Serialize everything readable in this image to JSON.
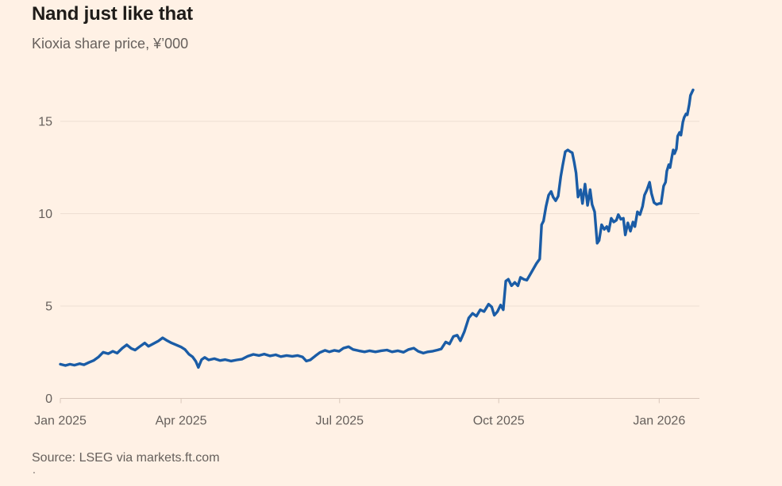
{
  "header": {
    "title": "Nand just like that",
    "subtitle": "Kioxia share price, ¥’000"
  },
  "footer": {
    "source": "Source: LSEG via markets.ft.com",
    "stray_mark": "."
  },
  "chart_data": {
    "type": "line",
    "title": "Nand just like that",
    "subtitle": "Kioxia share price, ¥’000",
    "source": "Source: LSEG via markets.ft.com",
    "ylabel": "Kioxia share price, ¥'000",
    "ylim": [
      0,
      17.2
    ],
    "y_ticks": [
      0,
      5,
      10,
      15
    ],
    "grid": "horizontal",
    "legend": "none",
    "x_unit": "fraction of x-axis (time, daily prices)",
    "x_ticks": [
      {
        "label": "Jan 2025",
        "f": 0.0
      },
      {
        "label": "Apr 2025",
        "f": 0.189
      },
      {
        "label": "Jul 2025",
        "f": 0.437
      },
      {
        "label": "Oct 2025",
        "f": 0.686
      },
      {
        "label": "Jan 2026",
        "f": 0.937
      }
    ],
    "colors": {
      "background": "#fff1e5",
      "line": "#1a5ca6",
      "grid": "#eeded2",
      "axis": "#d9c7ba",
      "text": "#66605c"
    },
    "series": [
      {
        "name": "Kioxia share price (¥'000)",
        "color": "#1a5ca6",
        "points": [
          [
            0.0,
            1.85
          ],
          [
            0.008,
            1.78
          ],
          [
            0.015,
            1.85
          ],
          [
            0.022,
            1.8
          ],
          [
            0.03,
            1.88
          ],
          [
            0.037,
            1.82
          ],
          [
            0.045,
            1.95
          ],
          [
            0.052,
            2.05
          ],
          [
            0.06,
            2.25
          ],
          [
            0.067,
            2.5
          ],
          [
            0.075,
            2.42
          ],
          [
            0.082,
            2.55
          ],
          [
            0.089,
            2.45
          ],
          [
            0.097,
            2.72
          ],
          [
            0.104,
            2.9
          ],
          [
            0.111,
            2.7
          ],
          [
            0.117,
            2.62
          ],
          [
            0.124,
            2.8
          ],
          [
            0.132,
            3.0
          ],
          [
            0.138,
            2.82
          ],
          [
            0.145,
            2.95
          ],
          [
            0.153,
            3.1
          ],
          [
            0.16,
            3.28
          ],
          [
            0.166,
            3.15
          ],
          [
            0.174,
            3.0
          ],
          [
            0.181,
            2.9
          ],
          [
            0.189,
            2.78
          ],
          [
            0.195,
            2.65
          ],
          [
            0.201,
            2.4
          ],
          [
            0.207,
            2.25
          ],
          [
            0.212,
            2.0
          ],
          [
            0.216,
            1.68
          ],
          [
            0.221,
            2.1
          ],
          [
            0.226,
            2.22
          ],
          [
            0.232,
            2.08
          ],
          [
            0.241,
            2.15
          ],
          [
            0.25,
            2.05
          ],
          [
            0.258,
            2.1
          ],
          [
            0.267,
            2.02
          ],
          [
            0.276,
            2.08
          ],
          [
            0.284,
            2.12
          ],
          [
            0.293,
            2.28
          ],
          [
            0.302,
            2.38
          ],
          [
            0.311,
            2.32
          ],
          [
            0.319,
            2.4
          ],
          [
            0.328,
            2.3
          ],
          [
            0.337,
            2.36
          ],
          [
            0.345,
            2.26
          ],
          [
            0.354,
            2.32
          ],
          [
            0.363,
            2.28
          ],
          [
            0.371,
            2.32
          ],
          [
            0.379,
            2.24
          ],
          [
            0.385,
            2.02
          ],
          [
            0.391,
            2.08
          ],
          [
            0.399,
            2.3
          ],
          [
            0.406,
            2.48
          ],
          [
            0.414,
            2.6
          ],
          [
            0.421,
            2.52
          ],
          [
            0.429,
            2.6
          ],
          [
            0.436,
            2.55
          ],
          [
            0.443,
            2.72
          ],
          [
            0.451,
            2.8
          ],
          [
            0.458,
            2.65
          ],
          [
            0.467,
            2.58
          ],
          [
            0.476,
            2.52
          ],
          [
            0.484,
            2.58
          ],
          [
            0.493,
            2.52
          ],
          [
            0.502,
            2.58
          ],
          [
            0.511,
            2.62
          ],
          [
            0.519,
            2.52
          ],
          [
            0.528,
            2.58
          ],
          [
            0.537,
            2.5
          ],
          [
            0.545,
            2.65
          ],
          [
            0.553,
            2.72
          ],
          [
            0.56,
            2.55
          ],
          [
            0.568,
            2.45
          ],
          [
            0.575,
            2.52
          ],
          [
            0.583,
            2.56
          ],
          [
            0.59,
            2.62
          ],
          [
            0.596,
            2.68
          ],
          [
            0.603,
            3.05
          ],
          [
            0.609,
            2.95
          ],
          [
            0.615,
            3.35
          ],
          [
            0.621,
            3.42
          ],
          [
            0.626,
            3.12
          ],
          [
            0.632,
            3.6
          ],
          [
            0.639,
            4.35
          ],
          [
            0.645,
            4.6
          ],
          [
            0.651,
            4.45
          ],
          [
            0.657,
            4.8
          ],
          [
            0.663,
            4.7
          ],
          [
            0.67,
            5.1
          ],
          [
            0.675,
            4.95
          ],
          [
            0.679,
            4.5
          ],
          [
            0.684,
            4.7
          ],
          [
            0.689,
            5.05
          ],
          [
            0.693,
            4.8
          ],
          [
            0.697,
            6.35
          ],
          [
            0.701,
            6.45
          ],
          [
            0.706,
            6.1
          ],
          [
            0.711,
            6.28
          ],
          [
            0.716,
            6.1
          ],
          [
            0.72,
            6.55
          ],
          [
            0.725,
            6.45
          ],
          [
            0.73,
            6.4
          ],
          [
            0.735,
            6.7
          ],
          [
            0.74,
            7.0
          ],
          [
            0.745,
            7.3
          ],
          [
            0.75,
            7.55
          ],
          [
            0.753,
            9.4
          ],
          [
            0.756,
            9.6
          ],
          [
            0.76,
            10.4
          ],
          [
            0.764,
            11.0
          ],
          [
            0.768,
            11.2
          ],
          [
            0.771,
            10.9
          ],
          [
            0.775,
            10.7
          ],
          [
            0.779,
            10.95
          ],
          [
            0.783,
            12.0
          ],
          [
            0.786,
            12.6
          ],
          [
            0.79,
            13.35
          ],
          [
            0.794,
            13.45
          ],
          [
            0.798,
            13.35
          ],
          [
            0.801,
            13.3
          ],
          [
            0.804,
            12.8
          ],
          [
            0.807,
            12.2
          ],
          [
            0.81,
            10.9
          ],
          [
            0.814,
            11.3
          ],
          [
            0.817,
            10.55
          ],
          [
            0.821,
            11.6
          ],
          [
            0.825,
            10.45
          ],
          [
            0.829,
            11.3
          ],
          [
            0.832,
            10.5
          ],
          [
            0.836,
            10.1
          ],
          [
            0.84,
            8.4
          ],
          [
            0.843,
            8.55
          ],
          [
            0.847,
            9.4
          ],
          [
            0.851,
            9.15
          ],
          [
            0.855,
            9.3
          ],
          [
            0.858,
            9.05
          ],
          [
            0.862,
            9.75
          ],
          [
            0.866,
            9.55
          ],
          [
            0.87,
            9.65
          ],
          [
            0.873,
            9.95
          ],
          [
            0.877,
            9.7
          ],
          [
            0.881,
            9.75
          ],
          [
            0.884,
            8.85
          ],
          [
            0.888,
            9.5
          ],
          [
            0.892,
            9.05
          ],
          [
            0.896,
            9.55
          ],
          [
            0.899,
            9.3
          ],
          [
            0.903,
            10.1
          ],
          [
            0.907,
            9.95
          ],
          [
            0.911,
            10.4
          ],
          [
            0.914,
            11.0
          ],
          [
            0.918,
            11.3
          ],
          [
            0.922,
            11.7
          ],
          [
            0.925,
            11.1
          ],
          [
            0.929,
            10.6
          ],
          [
            0.933,
            10.5
          ],
          [
            0.937,
            10.55
          ],
          [
            0.94,
            10.55
          ],
          [
            0.944,
            11.5
          ],
          [
            0.947,
            11.7
          ],
          [
            0.949,
            12.3
          ],
          [
            0.952,
            12.65
          ],
          [
            0.954,
            12.5
          ],
          [
            0.957,
            13.1
          ],
          [
            0.959,
            13.45
          ],
          [
            0.961,
            13.25
          ],
          [
            0.964,
            13.5
          ],
          [
            0.966,
            14.2
          ],
          [
            0.969,
            14.4
          ],
          [
            0.971,
            14.25
          ],
          [
            0.974,
            14.95
          ],
          [
            0.976,
            15.2
          ],
          [
            0.979,
            15.4
          ],
          [
            0.981,
            15.35
          ],
          [
            0.984,
            15.9
          ],
          [
            0.986,
            16.4
          ],
          [
            0.99,
            16.7
          ]
        ]
      }
    ]
  }
}
